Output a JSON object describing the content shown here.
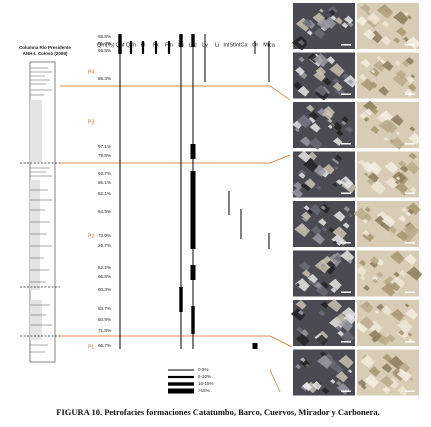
{
  "figure": {
    "caption": "FIGURA 10. Petrofacies formaciones Catatumbo, Barco, Cuervos, Mirador y Carbonera.",
    "column_title": [
      "Columna Río Presidente",
      "ANH-L Colosó (2009)"
    ],
    "qm_header": "Qm(%)",
    "samples": [
      "68.8%",
      "81.3%",
      "66.8%",
      "88.3%",
      "97.1%",
      "79.8%",
      "92.7%",
      "86.1%",
      "82.1%",
      "84.9%",
      "73.0%",
      "26.7%",
      "82.2%",
      "66.8%",
      "80.3%",
      "83.7%",
      "80.9%",
      "71.8%",
      "66.7%"
    ],
    "petrofacies": [
      "P4",
      "P3",
      "P2",
      "P1"
    ],
    "columns": [
      {
        "name": "Qpf",
        "segments": [
          [
            0,
            18,
            0
          ],
          [
            0,
            2,
            2
          ]
        ]
      },
      {
        "name": "Qch",
        "segments": [
          [
            1,
            2,
            1
          ]
        ]
      },
      {
        "name": "Pl",
        "segments": [
          [
            1,
            2,
            1
          ]
        ]
      },
      {
        "name": "Fk",
        "segments": [
          [
            1,
            2,
            1
          ]
        ]
      },
      {
        "name": "Fm",
        "segments": [
          [
            1,
            2,
            1
          ]
        ]
      },
      {
        "name": "Ls",
        "segments": [
          [
            0,
            18,
            0
          ],
          [
            0,
            1,
            2
          ],
          [
            14,
            15,
            2
          ]
        ]
      },
      {
        "name": "Lvc",
        "segments": [
          [
            0,
            18,
            0
          ],
          [
            0,
            1,
            2
          ],
          [
            4,
            5,
            3
          ],
          [
            6,
            11,
            3
          ],
          [
            12,
            13,
            3
          ],
          [
            15,
            17,
            2
          ]
        ]
      },
      {
        "name": "Lv",
        "segments": [
          [
            0,
            3,
            0
          ]
        ]
      },
      {
        "name": "Li",
        "segments": []
      },
      {
        "name": "IntSt",
        "segments": [
          [
            8,
            9,
            0
          ]
        ]
      },
      {
        "name": "IntCa",
        "segments": [
          [
            9,
            10,
            0
          ]
        ]
      },
      {
        "name": "Ol",
        "segments": [
          [
            1,
            2,
            0
          ],
          [
            18,
            18,
            3
          ]
        ]
      },
      {
        "name": "Mica",
        "segments": [
          [
            1,
            3,
            0
          ],
          [
            10,
            11,
            0
          ]
        ]
      }
    ],
    "legend": [
      "0-5%",
      "5-10%",
      "10-15%",
      ">15%"
    ]
  }
}
